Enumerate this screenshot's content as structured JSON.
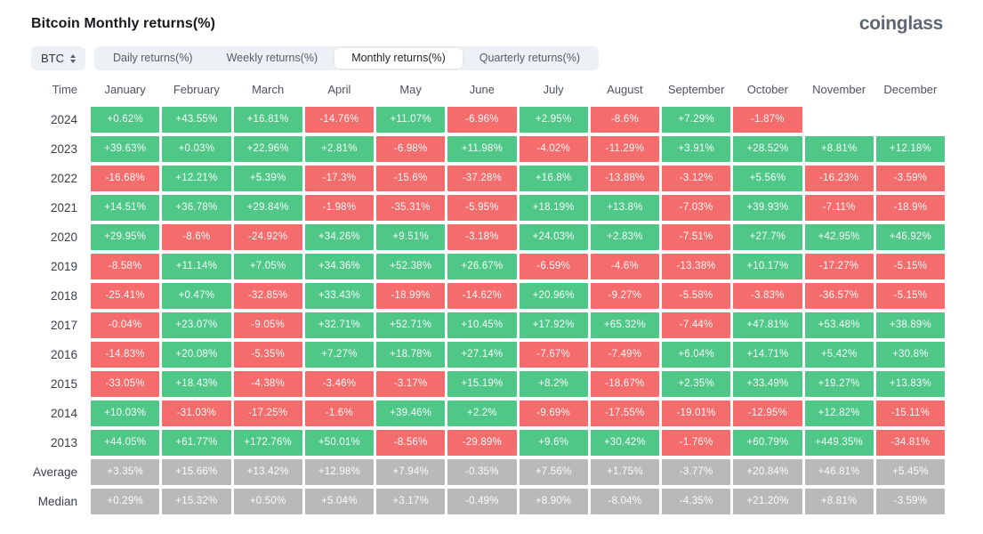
{
  "header": {
    "title": "Bitcoin Monthly returns(%)",
    "logo": "coinglass"
  },
  "controls": {
    "symbol": "BTC",
    "tabs": [
      {
        "label": "Daily returns(%)",
        "active": false
      },
      {
        "label": "Weekly returns(%)",
        "active": false
      },
      {
        "label": "Monthly returns(%)",
        "active": true
      },
      {
        "label": "Quarterly returns(%)",
        "active": false
      }
    ]
  },
  "colors": {
    "positive": "#4ec787",
    "negative": "#f56c6c",
    "summary": "#b9b9b9"
  },
  "table": {
    "columns": [
      "Time",
      "January",
      "February",
      "March",
      "April",
      "May",
      "June",
      "July",
      "August",
      "September",
      "October",
      "November",
      "December"
    ],
    "rows": [
      {
        "label": "2024",
        "type": "year",
        "cells": [
          "+0.62%",
          "+43.55%",
          "+16.81%",
          "-14.76%",
          "+11.07%",
          "-6.96%",
          "+2.95%",
          "-8.6%",
          "+7.29%",
          "-1.87%",
          null,
          null
        ]
      },
      {
        "label": "2023",
        "type": "year",
        "cells": [
          "+39.63%",
          "+0.03%",
          "+22.96%",
          "+2.81%",
          "-6.98%",
          "+11.98%",
          "-4.02%",
          "-11.29%",
          "+3.91%",
          "+28.52%",
          "+8.81%",
          "+12.18%"
        ]
      },
      {
        "label": "2022",
        "type": "year",
        "cells": [
          "-16.68%",
          "+12.21%",
          "+5.39%",
          "-17.3%",
          "-15.6%",
          "-37.28%",
          "+16.8%",
          "-13.88%",
          "-3.12%",
          "+5.56%",
          "-16.23%",
          "-3.59%"
        ]
      },
      {
        "label": "2021",
        "type": "year",
        "cells": [
          "+14.51%",
          "+36.78%",
          "+29.84%",
          "-1.98%",
          "-35.31%",
          "-5.95%",
          "+18.19%",
          "+13.8%",
          "-7.03%",
          "+39.93%",
          "-7.11%",
          "-18.9%"
        ]
      },
      {
        "label": "2020",
        "type": "year",
        "cells": [
          "+29.95%",
          "-8.6%",
          "-24.92%",
          "+34.26%",
          "+9.51%",
          "-3.18%",
          "+24.03%",
          "+2.83%",
          "-7.51%",
          "+27.7%",
          "+42.95%",
          "+46.92%"
        ]
      },
      {
        "label": "2019",
        "type": "year",
        "cells": [
          "-8.58%",
          "+11.14%",
          "+7.05%",
          "+34.36%",
          "+52.38%",
          "+26.67%",
          "-6.59%",
          "-4.6%",
          "-13.38%",
          "+10.17%",
          "-17.27%",
          "-5.15%"
        ]
      },
      {
        "label": "2018",
        "type": "year",
        "cells": [
          "-25.41%",
          "+0.47%",
          "-32.85%",
          "+33.43%",
          "-18.99%",
          "-14.62%",
          "+20.96%",
          "-9.27%",
          "-5.58%",
          "-3.83%",
          "-36.57%",
          "-5.15%"
        ]
      },
      {
        "label": "2017",
        "type": "year",
        "cells": [
          "-0.04%",
          "+23.07%",
          "-9.05%",
          "+32.71%",
          "+52.71%",
          "+10.45%",
          "+17.92%",
          "+65.32%",
          "-7.44%",
          "+47.81%",
          "+53.48%",
          "+38.89%"
        ]
      },
      {
        "label": "2016",
        "type": "year",
        "cells": [
          "-14.83%",
          "+20.08%",
          "-5.35%",
          "+7.27%",
          "+18.78%",
          "+27.14%",
          "-7.67%",
          "-7.49%",
          "+6.04%",
          "+14.71%",
          "+5.42%",
          "+30.8%"
        ]
      },
      {
        "label": "2015",
        "type": "year",
        "cells": [
          "-33.05%",
          "+18.43%",
          "-4.38%",
          "-3.46%",
          "-3.17%",
          "+15.19%",
          "+8.2%",
          "-18.67%",
          "+2.35%",
          "+33.49%",
          "+19.27%",
          "+13.83%"
        ]
      },
      {
        "label": "2014",
        "type": "year",
        "cells": [
          "+10.03%",
          "-31.03%",
          "-17.25%",
          "-1.6%",
          "+39.46%",
          "+2.2%",
          "-9.69%",
          "-17.55%",
          "-19.01%",
          "-12.95%",
          "+12.82%",
          "-15.11%"
        ]
      },
      {
        "label": "2013",
        "type": "year",
        "cells": [
          "+44.05%",
          "+61.77%",
          "+172.76%",
          "+50.01%",
          "-8.56%",
          "-29.89%",
          "+9.6%",
          "+30.42%",
          "-1.76%",
          "+60.79%",
          "+449.35%",
          "-34.81%"
        ]
      },
      {
        "label": "Average",
        "type": "summary",
        "cells": [
          "+3.35%",
          "+15.66%",
          "+13.42%",
          "+12.98%",
          "+7.94%",
          "-0.35%",
          "+7.56%",
          "+1.75%",
          "-3.77%",
          "+20.84%",
          "+46.81%",
          "+5.45%"
        ]
      },
      {
        "label": "Median",
        "type": "summary",
        "cells": [
          "+0.29%",
          "+15.32%",
          "+0.50%",
          "+5.04%",
          "+3.17%",
          "-0.49%",
          "+8.90%",
          "-8.04%",
          "-4.35%",
          "+21.20%",
          "+8.81%",
          "-3.59%"
        ]
      }
    ]
  }
}
